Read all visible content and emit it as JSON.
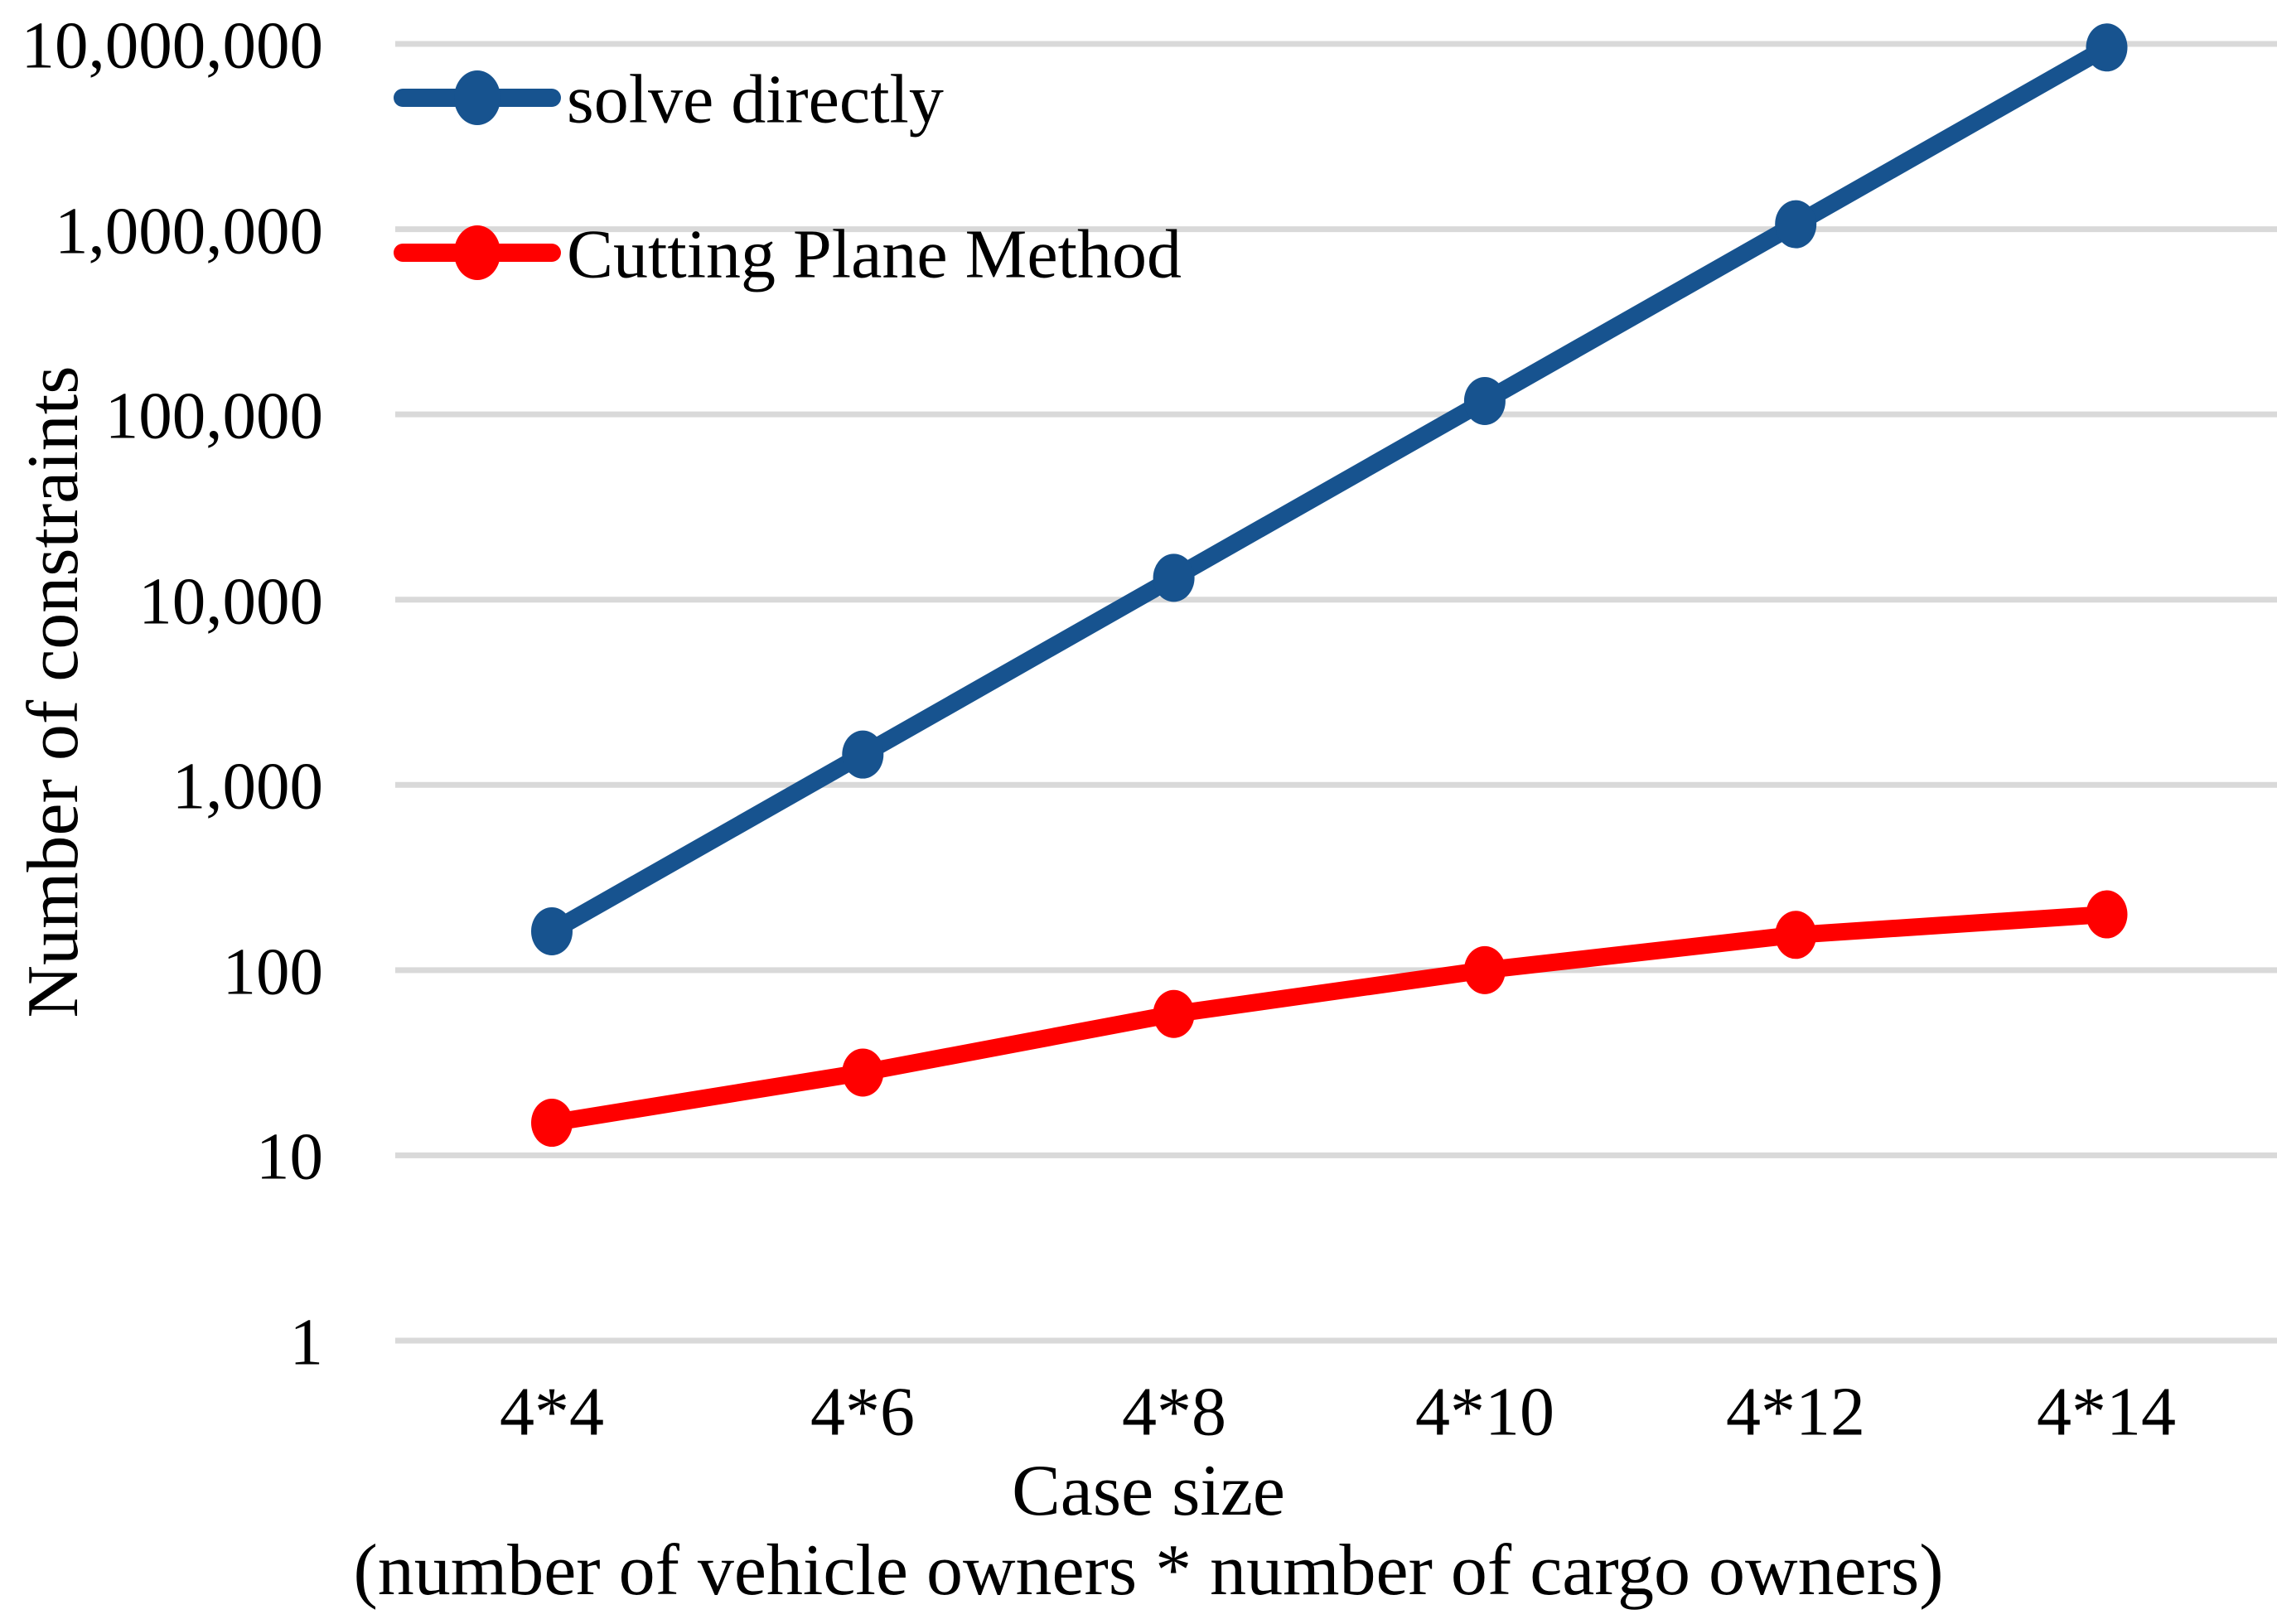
{
  "chart_data": {
    "type": "line",
    "title": "",
    "y_scale": "log10",
    "ylim": [
      1,
      10000000
    ],
    "grid": "horizontal-only",
    "grid_color": "#D9D9D9",
    "legend_position": "top-left-inside",
    "xlabel_line1": "Case size",
    "xlabel_line2": "(number of vehicle owners * number of cargo owners)",
    "ylabel": "Number of constraints",
    "x_categories": [
      "4*4",
      "4*6",
      "4*8",
      "4*10",
      "4*12",
      "4*14"
    ],
    "y_tick_labels": [
      "10,000,000",
      "1,000,000",
      "100,000",
      "10,000",
      "1,000",
      "100",
      "10",
      "1"
    ],
    "y_tick_values": [
      10000000,
      1000000,
      100000,
      10000,
      1000,
      100,
      10,
      1
    ],
    "series": [
      {
        "name": "solve directly",
        "color": "#17538F",
        "values": [
          162,
          1458,
          13122,
          118098,
          1062882,
          9565938
        ]
      },
      {
        "name": "Cutting Plane Method",
        "color": "#FF0000",
        "values": [
          15,
          28,
          58,
          100,
          155,
          200
        ]
      }
    ]
  },
  "colors": {
    "background": "#FFFFFF",
    "text": "#000000",
    "gridline": "#D9D9D9"
  }
}
